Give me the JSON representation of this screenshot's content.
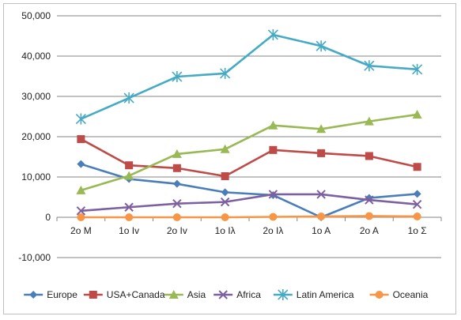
{
  "chart_data": {
    "type": "line",
    "categories": [
      "2o M",
      "1o Iv",
      "2o Iv",
      "1o Iλ",
      "2o Iλ",
      "1o A",
      "2o A",
      "1o Σ"
    ],
    "ylim": [
      -10000,
      50000
    ],
    "yticks": [
      -10000,
      0,
      10000,
      20000,
      30000,
      40000,
      50000
    ],
    "ytick_labels": [
      "-10,000",
      "0",
      "10,000",
      "20,000",
      "30,000",
      "40,000",
      "50,000"
    ],
    "grid": true,
    "legend_position": "bottom",
    "series": [
      {
        "name": "Europe",
        "color": "#4a7ebb",
        "marker": "diamond",
        "values": [
          13200,
          9500,
          8300,
          6200,
          5500,
          0,
          4800,
          5800
        ]
      },
      {
        "name": "USA+Canada",
        "color": "#be4b48",
        "marker": "square",
        "values": [
          19400,
          12900,
          12200,
          10200,
          16700,
          15900,
          15200,
          12500
        ]
      },
      {
        "name": "Asia",
        "color": "#98b954",
        "marker": "triangle",
        "values": [
          6700,
          10300,
          15700,
          16900,
          22800,
          21900,
          23800,
          25500
        ]
      },
      {
        "name": "Africa",
        "color": "#7d60a0",
        "marker": "x",
        "values": [
          1600,
          2500,
          3400,
          3800,
          5700,
          5700,
          4300,
          3200
        ]
      },
      {
        "name": "Latin America",
        "color": "#46aac5",
        "marker": "star",
        "values": [
          24400,
          29600,
          34900,
          35700,
          45300,
          42500,
          37600,
          36700
        ]
      },
      {
        "name": "Oceania",
        "color": "#f79646",
        "marker": "circle",
        "values": [
          0,
          0,
          0,
          0,
          100,
          200,
          300,
          200
        ]
      }
    ]
  }
}
